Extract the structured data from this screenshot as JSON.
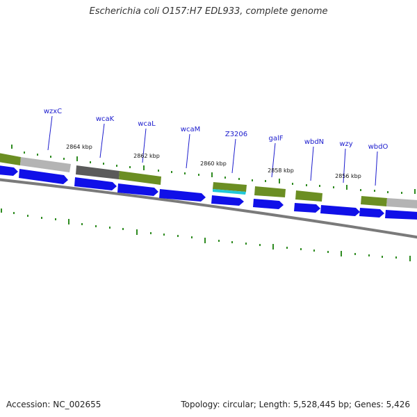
{
  "title": "Escherichia coli O157:H7 EDL933, complete genome",
  "footer": {
    "accession": "Accession: NC_002655",
    "summary": "Topology: circular; Length: 5,528,445 bp; Genes: 5,426"
  },
  "colors": {
    "cds_blue": "#1010e8",
    "feature_green": "#6b8e23",
    "feature_gray": "#b4b4b4",
    "feature_dark_gray": "#5a5a5a",
    "feature_cyan": "#20c8d8",
    "backbone_gray": "#808080",
    "tick_green": "#2e8b20",
    "label_blue": "#1a1acd"
  },
  "gene_labels": [
    "wzxC",
    "wcaK",
    "wcaL",
    "wcaM",
    "Z3206",
    "galF",
    "wbdN",
    "wzy",
    "wbdO"
  ],
  "kbp_labels": [
    "2864 kbp",
    "2862 kbp",
    "2860 kbp",
    "2858 kbp",
    "2856 kbp"
  ]
}
